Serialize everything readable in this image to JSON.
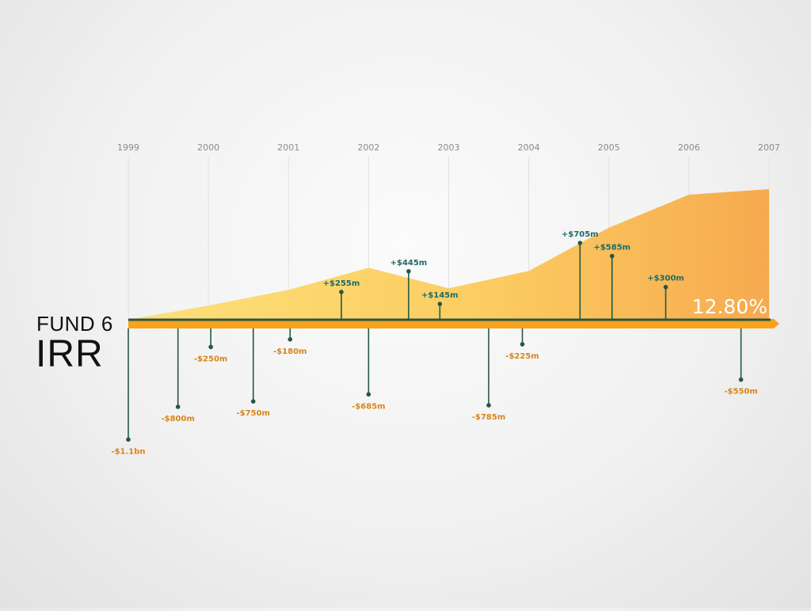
{
  "title": {
    "line1": "FUND 6",
    "line2": "IRR"
  },
  "irr_value": "12.80%",
  "colors": {
    "area_light": "#fde07a",
    "area_dark": "#f6aa4f",
    "axis": "#255747",
    "axis_bar": "#f9a21b",
    "positive": "#1f6b63",
    "negative": "#d7861a",
    "grid": "#e2e2e2"
  },
  "chart_data": {
    "type": "area",
    "x_ticks": [
      "1999",
      "2000",
      "2001",
      "2002",
      "2003",
      "2004",
      "2005",
      "2006",
      "2007"
    ],
    "xlim": [
      1999,
      2007
    ],
    "area": {
      "x": [
        1999,
        2000,
        2001,
        2002,
        2003,
        2004,
        2005,
        2006,
        2007
      ],
      "y": [
        0,
        0.18,
        0.38,
        0.66,
        0.4,
        0.62,
        1.17,
        1.59,
        1.66
      ]
    },
    "cash_flows": [
      {
        "x": 1999.0,
        "value": -1100,
        "label": "-$1.1bn"
      },
      {
        "x": 1999.62,
        "value": -800,
        "label": "-$800m"
      },
      {
        "x": 2000.03,
        "value": -250,
        "label": "-$250m"
      },
      {
        "x": 2000.56,
        "value": -750,
        "label": "-$750m"
      },
      {
        "x": 2001.02,
        "value": -180,
        "label": "-$180m"
      },
      {
        "x": 2001.66,
        "value": 255,
        "label": "+$255m"
      },
      {
        "x": 2002.0,
        "value": -685,
        "label": "-$685m"
      },
      {
        "x": 2002.5,
        "value": 445,
        "label": "+$445m"
      },
      {
        "x": 2002.89,
        "value": 145,
        "label": "+$145m"
      },
      {
        "x": 2003.5,
        "value": -785,
        "label": "-$785m"
      },
      {
        "x": 2003.92,
        "value": -225,
        "label": "-$225m"
      },
      {
        "x": 2004.64,
        "value": 705,
        "label": "+$705m"
      },
      {
        "x": 2005.04,
        "value": 585,
        "label": "+$585m"
      },
      {
        "x": 2005.71,
        "value": 300,
        "label": "+$300m"
      },
      {
        "x": 2006.65,
        "value": -550,
        "label": "-$550m"
      }
    ],
    "grid": true
  }
}
